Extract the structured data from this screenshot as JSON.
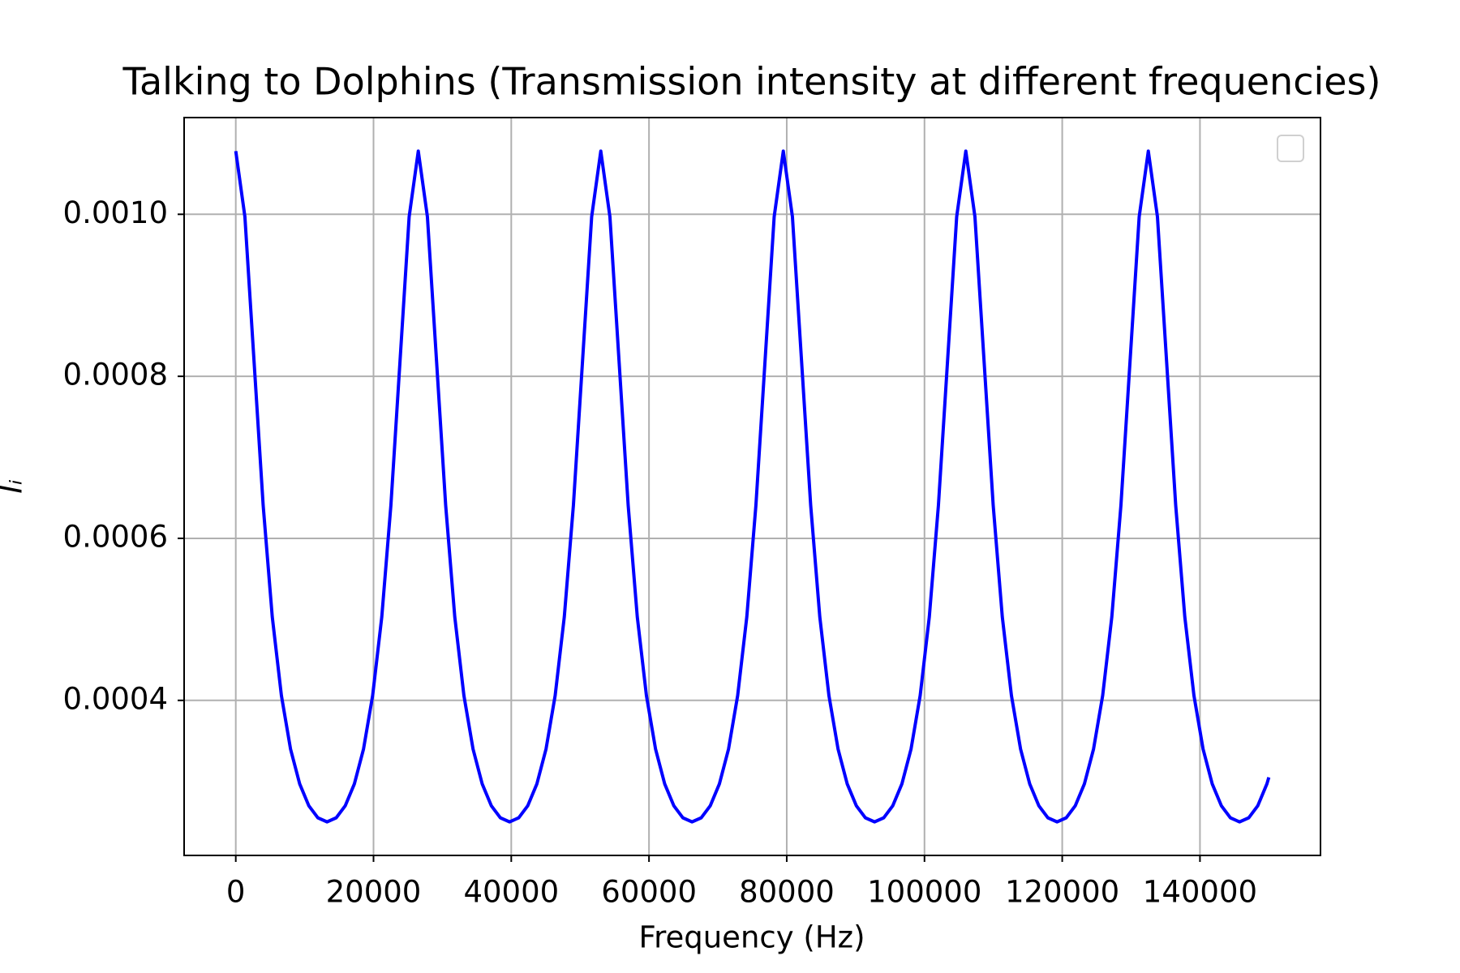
{
  "chart_data": {
    "type": "line",
    "title": "Talking to Dolphins (Transmission intensity at different frequencies)",
    "xlabel": "Frequency (Hz)",
    "ylabel": "Iᵢ",
    "grid": true,
    "x": [
      0,
      1325,
      2650,
      3975,
      5300,
      6625,
      7950,
      9275,
      10600,
      11925,
      13250,
      14575,
      15900,
      17225,
      18550,
      19875,
      21200,
      22525,
      23850,
      25175,
      26500,
      27825,
      29150,
      30475,
      31800,
      33125,
      34450,
      35775,
      37100,
      38425,
      39750,
      41075,
      42400,
      43725,
      45050,
      46375,
      47700,
      49025,
      50350,
      51675,
      53000,
      54325,
      55650,
      56975,
      58300,
      59625,
      60950,
      62275,
      63600,
      64925,
      66250,
      67575,
      68900,
      70225,
      71550,
      72875,
      74200,
      75525,
      76850,
      78175,
      79500,
      80825,
      82150,
      83475,
      84800,
      86125,
      87450,
      88775,
      90100,
      91425,
      92750,
      94075,
      95400,
      96725,
      98050,
      99375,
      100700,
      102025,
      103350,
      104675,
      106000,
      107325,
      108650,
      109975,
      111300,
      112625,
      113950,
      115275,
      116600,
      117925,
      119250,
      120575,
      121900,
      123225,
      124550,
      125875,
      127200,
      128525,
      129850,
      131175,
      132500,
      133825,
      135150,
      136475,
      137800,
      139125,
      140450,
      141775,
      143100,
      144425,
      145750,
      147075,
      148400,
      149725,
      150000
    ],
    "series": [
      {
        "color": "#0000ff",
        "values": [
          0.001078,
          0.000997,
          0.000819,
          0.000641,
          0.000503,
          0.000406,
          0.00034,
          0.000297,
          0.00027,
          0.000255,
          0.00025,
          0.000255,
          0.00027,
          0.000297,
          0.00034,
          0.000406,
          0.000503,
          0.000641,
          0.000819,
          0.000997,
          0.001078,
          0.000997,
          0.000819,
          0.000641,
          0.000503,
          0.000406,
          0.00034,
          0.000297,
          0.00027,
          0.000255,
          0.00025,
          0.000255,
          0.00027,
          0.000297,
          0.00034,
          0.000406,
          0.000503,
          0.000641,
          0.000819,
          0.000997,
          0.001078,
          0.000997,
          0.000819,
          0.000641,
          0.000503,
          0.000406,
          0.00034,
          0.000297,
          0.00027,
          0.000255,
          0.00025,
          0.000255,
          0.00027,
          0.000297,
          0.00034,
          0.000406,
          0.000503,
          0.000641,
          0.000819,
          0.000997,
          0.001078,
          0.000997,
          0.000819,
          0.000641,
          0.000503,
          0.000406,
          0.00034,
          0.000297,
          0.00027,
          0.000255,
          0.00025,
          0.000255,
          0.00027,
          0.000297,
          0.00034,
          0.000406,
          0.000503,
          0.000641,
          0.000819,
          0.000997,
          0.001078,
          0.000997,
          0.000819,
          0.000641,
          0.000503,
          0.000406,
          0.00034,
          0.000297,
          0.00027,
          0.000255,
          0.00025,
          0.000255,
          0.00027,
          0.000297,
          0.00034,
          0.000406,
          0.000503,
          0.000641,
          0.000819,
          0.000997,
          0.001078,
          0.000997,
          0.000819,
          0.000641,
          0.000503,
          0.000406,
          0.00034,
          0.000297,
          0.00027,
          0.000255,
          0.00025,
          0.000255,
          0.00027,
          0.000297,
          0.000305
        ]
      }
    ],
    "xlim": [
      -7500,
      157500
    ],
    "ylim": [
      0.0002086,
      0.0011194
    ],
    "xticks": [
      0,
      20000,
      40000,
      60000,
      80000,
      100000,
      120000,
      140000
    ],
    "yticks": [
      {
        "value": 0.0004,
        "label": "0.0004"
      },
      {
        "value": 0.0006,
        "label": "0.0006"
      },
      {
        "value": 0.0008,
        "label": "0.0008"
      },
      {
        "value": 0.001,
        "label": "0.0010"
      }
    ]
  }
}
